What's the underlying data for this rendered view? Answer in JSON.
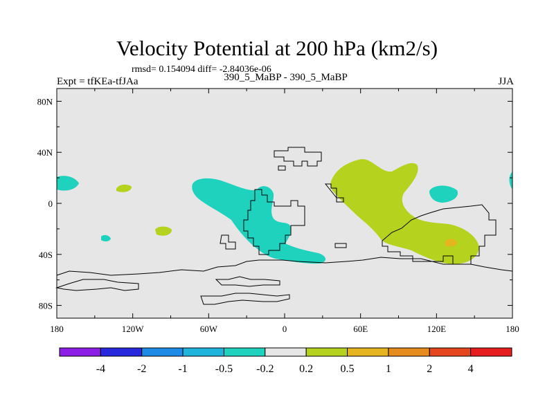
{
  "chart_data": {
    "type": "heatmap",
    "title": "Velocity Potential at 200 hPa (km2/s)",
    "stats_line": "rmsd= 0.154094 diff= -2.84036e-06",
    "left_label": "Expt = tfKEa-tfJAa",
    "center_label": "390_5_MaBP - 390_5_MaBP",
    "right_label": "JJA",
    "x_ticks": [
      {
        "value": -180,
        "label": "180"
      },
      {
        "value": -120,
        "label": "120W"
      },
      {
        "value": -60,
        "label": "60W"
      },
      {
        "value": 0,
        "label": "0"
      },
      {
        "value": 60,
        "label": "60E"
      },
      {
        "value": 120,
        "label": "120E"
      },
      {
        "value": 180,
        "label": "180"
      }
    ],
    "y_ticks": [
      {
        "value": 80,
        "label": "80N"
      },
      {
        "value": 40,
        "label": "40N"
      },
      {
        "value": 0,
        "label": "0"
      },
      {
        "value": -40,
        "label": "40S"
      },
      {
        "value": -80,
        "label": "80S"
      }
    ],
    "xlim": [
      -180,
      180
    ],
    "ylim": [
      -90,
      90
    ],
    "colorbar": {
      "labels": [
        "-4",
        "-2",
        "-1",
        "-0.5",
        "-0.2",
        "0.2",
        "0.5",
        "1",
        "2",
        "4"
      ],
      "colors": [
        "#8c1ee6",
        "#2828dc",
        "#1e8ce6",
        "#1eb4dc",
        "#1ed2be",
        "#e6e6e6",
        "#b4d21e",
        "#e6b41e",
        "#e68c1e",
        "#e6461e",
        "#e61e1e"
      ]
    },
    "background_color": "#e6e6e6",
    "regions": [
      {
        "bin": "-0.5 to -0.2",
        "color": "#1ed2be",
        "centers": [
          [
            -170,
            15
          ],
          [
            -33,
            0
          ],
          [
            132,
            8
          ],
          [
            180,
            18
          ],
          [
            -143,
            -27
          ]
        ]
      },
      {
        "bin": "0.2 to 0.5",
        "color": "#b4d21e",
        "centers": [
          [
            -130,
            12
          ],
          [
            -100,
            -21
          ],
          [
            75,
            5
          ],
          [
            135,
            -25
          ]
        ]
      },
      {
        "bin": "0.5 to 1",
        "color": "#e6b41e",
        "centers": [
          [
            132,
            -30
          ]
        ]
      }
    ]
  }
}
